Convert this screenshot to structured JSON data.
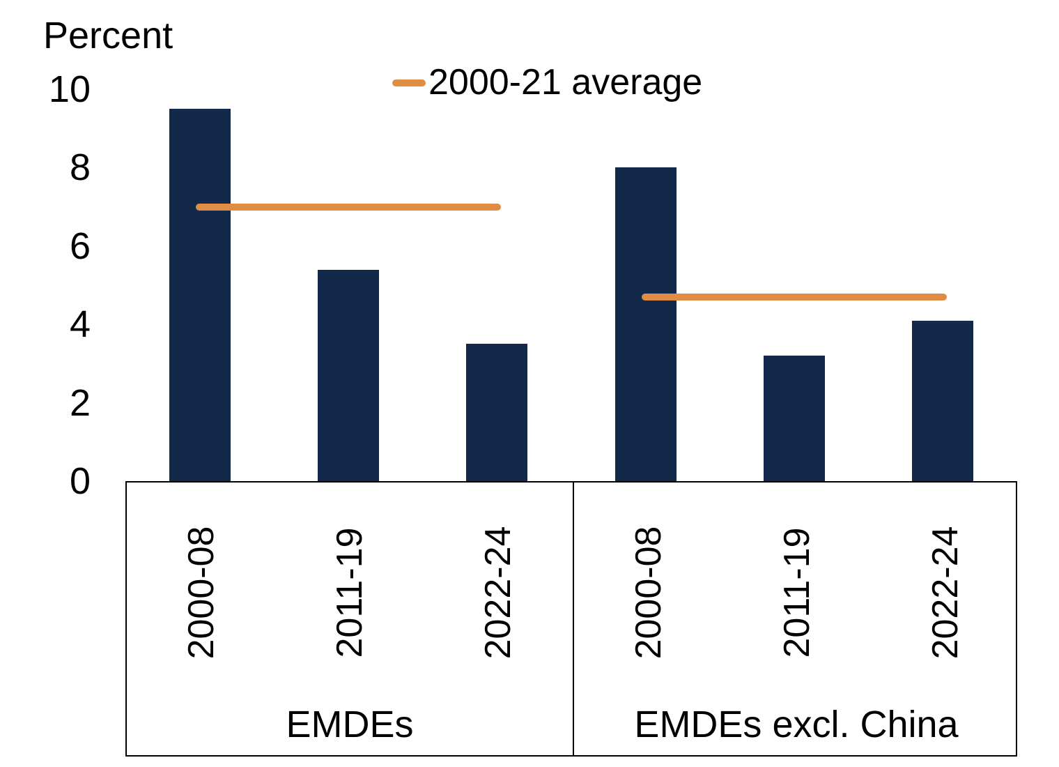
{
  "chart_data": {
    "type": "bar",
    "unit_label": "Percent",
    "ylim": [
      0,
      10
    ],
    "yticks": [
      0,
      2,
      4,
      6,
      8,
      10
    ],
    "grid": false,
    "legend": {
      "position": "top-center",
      "entries": [
        {
          "label": "2000-21 average",
          "marker": "line",
          "color": "#DF8C45"
        }
      ]
    },
    "colors": {
      "bar": "#12294B",
      "average_line": "#DF8C45",
      "axis": "#000000",
      "background": "#FFFFFF"
    },
    "groups": [
      {
        "label": "EMDEs",
        "categories": [
          "2000-08",
          "2011-19",
          "2022-24"
        ],
        "values": [
          9.5,
          5.4,
          3.5
        ],
        "average": 7.0
      },
      {
        "label": "EMDEs excl. China",
        "categories": [
          "2000-08",
          "2011-19",
          "2022-24"
        ],
        "values": [
          8.0,
          3.2,
          4.1
        ],
        "average": 4.7
      }
    ]
  }
}
